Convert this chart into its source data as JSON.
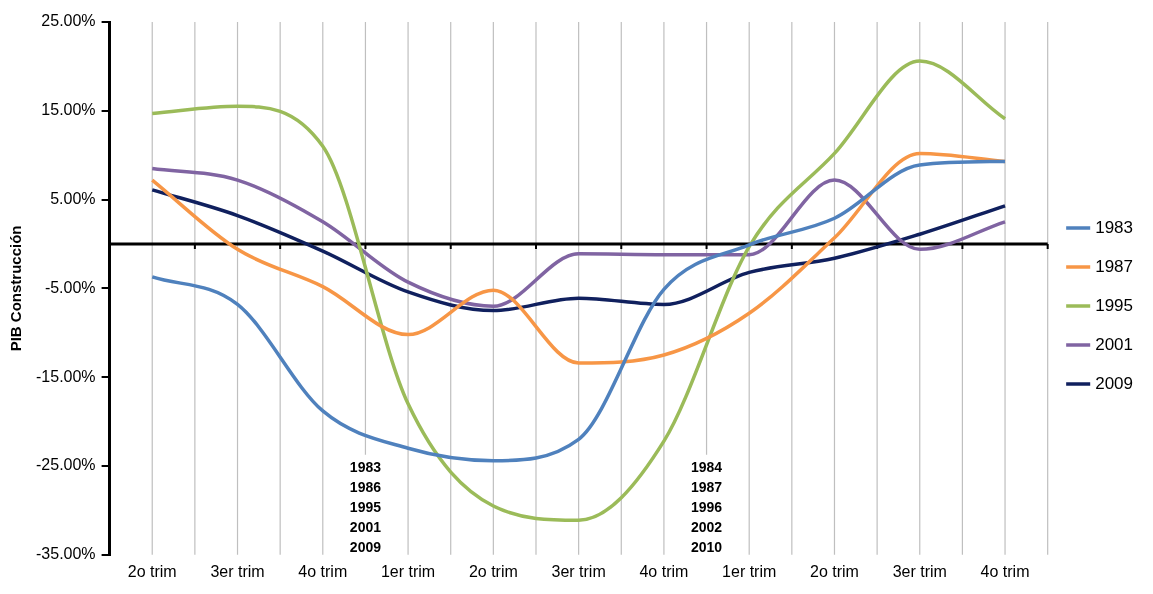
{
  "chart_data": {
    "type": "line",
    "ylabel": "PIB Construcción",
    "categories": [
      "2o trim",
      "3er trim",
      "4o trim",
      "1er trim",
      "2o trim",
      "3er trim",
      "4o trim",
      "1er trim",
      "2o trim",
      "3er trim",
      "4o trim"
    ],
    "series": [
      {
        "name": "1983",
        "color": "#4f81bd",
        "values": [
          -3.7,
          -6.8,
          -18.8,
          -23,
          -24.4,
          -22,
          -5.1,
          -0.1,
          2.9,
          8.9,
          9.3
        ]
      },
      {
        "name": "1987",
        "color": "#f79646",
        "values": [
          7.2,
          -0.6,
          -4.8,
          -10.2,
          -5.2,
          -13.4,
          -12.5,
          -7.8,
          0.7,
          10.2,
          9.3
        ]
      },
      {
        "name": "1995",
        "color": "#9bbb59",
        "values": [
          14.7,
          15.5,
          11,
          -18,
          -29.5,
          -31.1,
          -22.2,
          -0.3,
          10.2,
          20.6,
          14.1
        ]
      },
      {
        "name": "2001",
        "color": "#8064a2",
        "values": [
          8.5,
          7.2,
          2.5,
          -4.3,
          -7,
          -1.1,
          -1.2,
          -1.2,
          7.2,
          -0.6,
          2.5
        ]
      },
      {
        "name": "2009",
        "color": "#10205e",
        "values": [
          6.1,
          3.2,
          -0.8,
          -5.4,
          -7.5,
          -6.1,
          -6.8,
          -3.2,
          -1.6,
          1.1,
          4.3
        ]
      }
    ],
    "ylim": [
      -35,
      25
    ],
    "yticks": [
      {
        "value": 25,
        "label": "25.00%"
      },
      {
        "value": 15,
        "label": "15.00%"
      },
      {
        "value": 5,
        "label": "5.00%"
      },
      {
        "value": -5,
        "label": "-5.00%"
      },
      {
        "value": -15,
        "label": "-15.00%"
      },
      {
        "value": -25,
        "label": "-25.00%"
      },
      {
        "value": -35,
        "label": "-35.00%"
      }
    ],
    "grid": "x",
    "legend": "right",
    "marker": "none",
    "line_style": "solid",
    "annotations": [
      "1983\n1986\n1995\n2001\n2009",
      "1984\n1987\n1996\n2002\n2010"
    ]
  }
}
